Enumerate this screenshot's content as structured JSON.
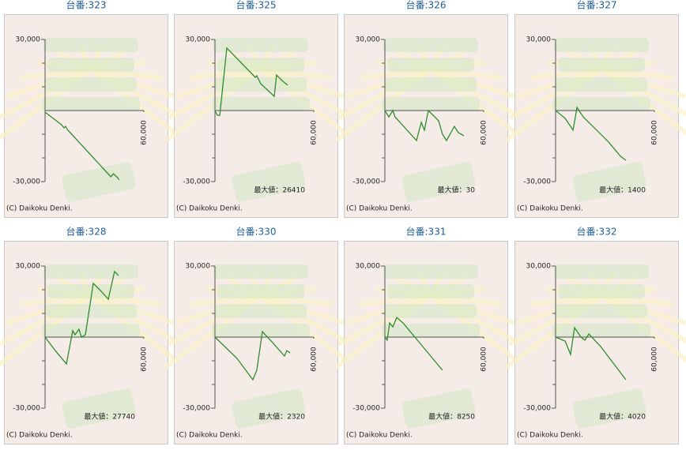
{
  "chart_data": [
    {
      "type": "line",
      "title": "台番:323",
      "copyright": "(C) Daikoku Denki.",
      "color": "#2e8b2e",
      "x": [
        0,
        3800,
        10000,
        11500,
        12500,
        13500,
        40000,
        41500,
        44000,
        45000
      ],
      "values": [
        -700,
        -2700,
        -6000,
        -7300,
        -6700,
        -8000,
        -28000,
        -26700,
        -28300,
        -29300
      ],
      "xlim": [
        0,
        60000
      ],
      "xticks": [
        {
          "value": 60000,
          "label": "60,000"
        }
      ],
      "ylim": [
        -30000,
        30000
      ],
      "yticks": [
        {
          "value": 30000,
          "label": "30,000"
        },
        {
          "value": -30000,
          "label": "-30,000"
        }
      ],
      "minor_yticks": [
        -20000,
        -10000,
        10000,
        20000
      ]
    },
    {
      "type": "line",
      "title": "台番:325",
      "annotation": "最大値：26410",
      "copyright": "(C) Daikoku Denki.",
      "color": "#2e8b2e",
      "x": [
        0,
        1400,
        2900,
        7200,
        24500,
        25400,
        27800,
        36000,
        37400,
        41300,
        44200
      ],
      "values": [
        0,
        -2000,
        -2000,
        26400,
        14000,
        14700,
        11300,
        6000,
        15000,
        12300,
        10700
      ],
      "xlim": [
        0,
        60000
      ],
      "xticks": [
        {
          "value": 60000,
          "label": "60,000"
        }
      ],
      "ylim": [
        -30000,
        30000
      ],
      "yticks": [
        {
          "value": 30000,
          "label": "30,000"
        },
        {
          "value": -30000,
          "label": "-30,000"
        }
      ],
      "minor_yticks": [
        -20000,
        -10000,
        10000,
        20000
      ]
    },
    {
      "type": "line",
      "title": "台番:326",
      "annotation": "最大値：30",
      "copyright": "(C) Daikoku Denki.",
      "color": "#2e8b2e",
      "x": [
        0,
        2400,
        4800,
        6200,
        19200,
        22100,
        24000,
        26400,
        32600,
        35000,
        37400,
        42200,
        44600,
        48000
      ],
      "values": [
        0,
        -2700,
        0,
        -2700,
        -12700,
        -5000,
        -8300,
        0,
        -4300,
        -10000,
        -12700,
        -6700,
        -9300,
        -10700
      ],
      "xlim": [
        0,
        60000
      ],
      "xticks": [
        {
          "value": 60000,
          "label": "60,000"
        }
      ],
      "ylim": [
        -30000,
        30000
      ],
      "yticks": [
        {
          "value": 30000,
          "label": "30,000"
        },
        {
          "value": -30000,
          "label": "-30,000"
        }
      ],
      "minor_yticks": [
        -20000,
        -10000,
        10000,
        20000
      ]
    },
    {
      "type": "line",
      "title": "台番:327",
      "annotation": "最大値：1400",
      "copyright": "(C) Daikoku Denki.",
      "color": "#2e8b2e",
      "x": [
        0,
        5800,
        10600,
        13000,
        16800,
        22600,
        32200,
        39400,
        42700
      ],
      "values": [
        0,
        -3300,
        -8300,
        1300,
        -2700,
        -6700,
        -13300,
        -19300,
        -21000
      ],
      "xlim": [
        0,
        60000
      ],
      "xticks": [
        {
          "value": 60000,
          "label": "60,000"
        }
      ],
      "ylim": [
        -30000,
        30000
      ],
      "yticks": [
        {
          "value": 30000,
          "label": "30,000"
        },
        {
          "value": -30000,
          "label": "-30,000"
        }
      ],
      "minor_yticks": [
        -20000,
        -10000,
        10000,
        20000
      ]
    },
    {
      "type": "line",
      "title": "台番:328",
      "annotation": "最大値：27740",
      "copyright": "(C) Daikoku Denki.",
      "color": "#2e8b2e",
      "x": [
        0,
        6200,
        13000,
        16800,
        18200,
        20600,
        22100,
        24500,
        29300,
        35000,
        38400,
        42200,
        44600
      ],
      "values": [
        0,
        -5700,
        -11300,
        2700,
        1000,
        3300,
        0,
        1000,
        22700,
        18700,
        16000,
        27700,
        26000
      ],
      "xlim": [
        0,
        60000
      ],
      "xticks": [
        {
          "value": 60000,
          "label": "60,000"
        }
      ],
      "ylim": [
        -30000,
        30000
      ],
      "yticks": [
        {
          "value": 30000,
          "label": "30,000"
        },
        {
          "value": -30000,
          "label": "-30,000"
        }
      ],
      "minor_yticks": [
        -20000,
        -10000,
        10000,
        20000
      ]
    },
    {
      "type": "line",
      "title": "台番:330",
      "annotation": "最大値：2320",
      "copyright": "(C) Daikoku Denki.",
      "color": "#2e8b2e",
      "x": [
        0,
        13400,
        23000,
        25400,
        28800,
        35000,
        42200,
        43700,
        45600
      ],
      "values": [
        0,
        -9000,
        -18000,
        -14000,
        2300,
        -2300,
        -8000,
        -5700,
        -6700
      ],
      "xlim": [
        0,
        60000
      ],
      "xticks": [
        {
          "value": 60000,
          "label": "60,000"
        }
      ],
      "ylim": [
        -30000,
        30000
      ],
      "yticks": [
        {
          "value": 30000,
          "label": "30,000"
        },
        {
          "value": -30000,
          "label": "-30,000"
        }
      ],
      "minor_yticks": [
        -20000,
        -10000,
        10000,
        20000
      ]
    },
    {
      "type": "line",
      "title": "台番:331",
      "annotation": "最大値：8250",
      "copyright": "(C) Daikoku Denki.",
      "color": "#2e8b2e",
      "x": [
        0,
        1400,
        2900,
        4800,
        7200,
        11000,
        23000,
        35000
      ],
      "values": [
        0,
        -1300,
        6000,
        4300,
        8300,
        6000,
        -4000,
        -14000
      ],
      "xlim": [
        0,
        60000
      ],
      "xticks": [
        {
          "value": 60000,
          "label": "60,000"
        }
      ],
      "ylim": [
        -30000,
        30000
      ],
      "yticks": [
        {
          "value": 30000,
          "label": "30,000"
        },
        {
          "value": -30000,
          "label": "-30,000"
        }
      ],
      "minor_yticks": [
        -20000,
        -10000,
        10000,
        20000
      ]
    },
    {
      "type": "line",
      "title": "台番:332",
      "annotation": "最大値：4020",
      "copyright": "(C) Daikoku Denki.",
      "color": "#2e8b2e",
      "x": [
        0,
        5800,
        9100,
        11500,
        15400,
        17800,
        20200,
        27400,
        42700
      ],
      "values": [
        0,
        -1700,
        -7300,
        4000,
        0,
        -1300,
        1300,
        -4000,
        -18000
      ],
      "xlim": [
        0,
        60000
      ],
      "xticks": [
        {
          "value": 60000,
          "label": "60,000"
        }
      ],
      "ylim": [
        -30000,
        30000
      ],
      "yticks": [
        {
          "value": 30000,
          "label": "30,000"
        },
        {
          "value": -30000,
          "label": "-30,000"
        }
      ],
      "minor_yticks": [
        -20000,
        -10000,
        10000,
        20000
      ]
    }
  ]
}
